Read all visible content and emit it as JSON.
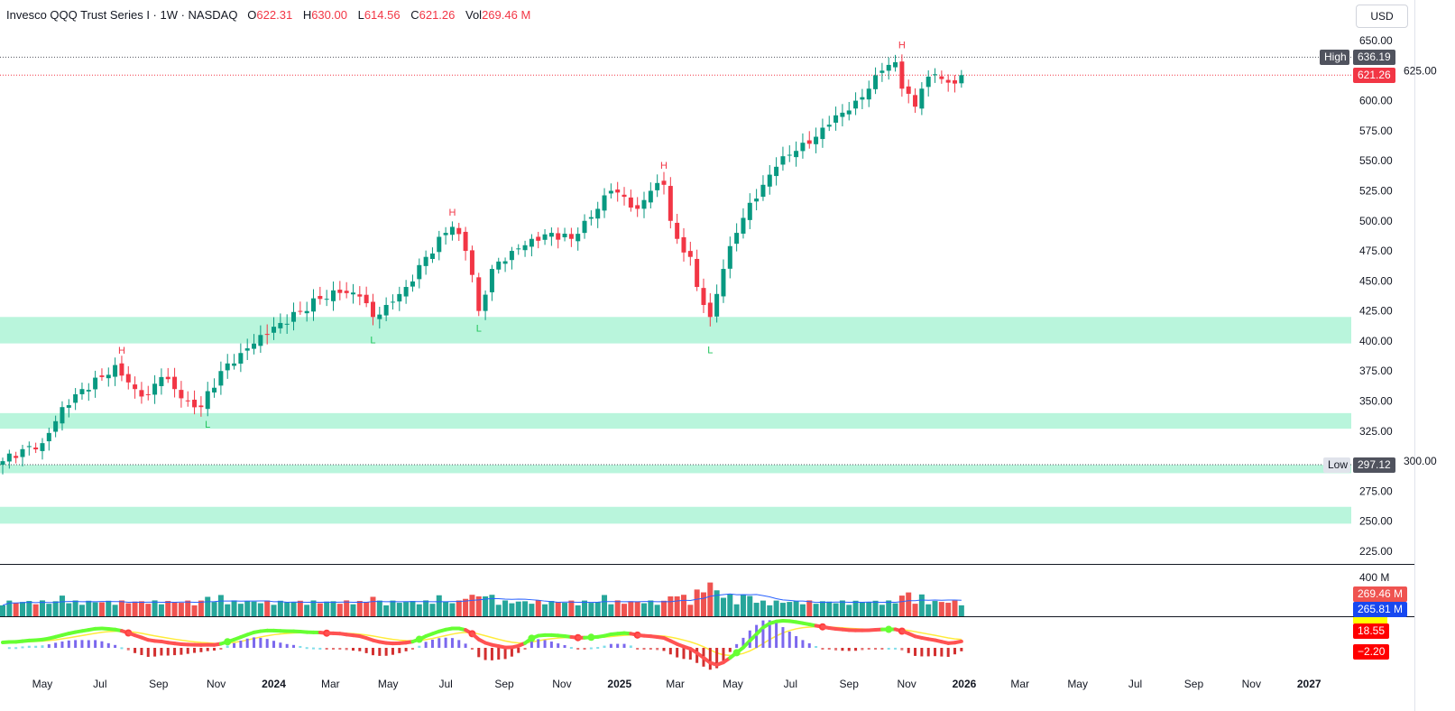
{
  "legend": {
    "title": "Invesco QQQ Trust Series I · 1W · NASDAQ",
    "open_label": "O",
    "open": "622.31",
    "high_label": "H",
    "high": "630.00",
    "low_label": "L",
    "low": "614.56",
    "close_label": "C",
    "close": "621.26",
    "vol_label": "Vol",
    "vol": "269.46 M"
  },
  "currency": "USD",
  "colors": {
    "up": "#089981",
    "down": "#f23645",
    "zone": "#b9f5dc",
    "ma": "#2962ff"
  },
  "price_tags": {
    "high_label": "High",
    "high_value": "636.19",
    "last_value": "621.26",
    "low_label": "Low",
    "low_value": "297.12"
  },
  "volume_tags": {
    "axis": "400 M",
    "volume": "269.46 M",
    "volume_ma": "265.81 M"
  },
  "indicator_tags": {
    "line": "18.55",
    "histogram": "−2.20"
  },
  "chart_data": {
    "type": "candlestick",
    "timeframe": "1W",
    "y_ticks": [
      "650.00",
      "625.00",
      "600.00",
      "575.00",
      "550.00",
      "525.00",
      "500.00",
      "475.00",
      "450.00",
      "425.00",
      "400.00",
      "375.00",
      "350.00",
      "325.00",
      "300.00",
      "275.00",
      "250.00",
      "225.00"
    ],
    "ylim": [
      225,
      650
    ],
    "x_ticks": [
      {
        "label": "May",
        "date": "2023-05-01"
      },
      {
        "label": "Jul",
        "date": "2023-07-01"
      },
      {
        "label": "Sep",
        "date": "2023-09-01"
      },
      {
        "label": "Nov",
        "date": "2023-11-01"
      },
      {
        "label": "2024",
        "date": "2024-01-01",
        "bold": true
      },
      {
        "label": "Mar",
        "date": "2024-03-01"
      },
      {
        "label": "May",
        "date": "2024-05-01"
      },
      {
        "label": "Jul",
        "date": "2024-07-01"
      },
      {
        "label": "Sep",
        "date": "2024-09-01"
      },
      {
        "label": "Nov",
        "date": "2024-11-01"
      },
      {
        "label": "2025",
        "date": "2025-01-01",
        "bold": true
      },
      {
        "label": "Mar",
        "date": "2025-03-01"
      },
      {
        "label": "May",
        "date": "2025-05-01"
      },
      {
        "label": "Jul",
        "date": "2025-07-01"
      },
      {
        "label": "Sep",
        "date": "2025-09-01"
      },
      {
        "label": "Nov",
        "date": "2025-11-01"
      },
      {
        "label": "2026",
        "date": "2026-01-01",
        "bold": true
      },
      {
        "label": "Mar",
        "date": "2026-03-01"
      },
      {
        "label": "May",
        "date": "2026-05-01"
      },
      {
        "label": "Jul",
        "date": "2026-07-01"
      },
      {
        "label": "Sep",
        "date": "2026-09-01"
      },
      {
        "label": "Nov",
        "date": "2026-11-01"
      },
      {
        "label": "2027",
        "date": "2027-01-01",
        "bold": true
      }
    ],
    "close_keypoints": [
      [
        "2023-03-20",
        300
      ],
      [
        "2023-04-10",
        310
      ],
      [
        "2023-05-01",
        315
      ],
      [
        "2023-05-22",
        345
      ],
      [
        "2023-06-12",
        360
      ],
      [
        "2023-07-03",
        370
      ],
      [
        "2023-07-17",
        380
      ],
      [
        "2023-08-07",
        360
      ],
      [
        "2023-08-21",
        355
      ],
      [
        "2023-09-04",
        370
      ],
      [
        "2023-09-18",
        360
      ],
      [
        "2023-10-02",
        350
      ],
      [
        "2023-10-16",
        345
      ],
      [
        "2023-11-06",
        375
      ],
      [
        "2023-11-27",
        390
      ],
      [
        "2023-12-18",
        405
      ],
      [
        "2024-01-08",
        415
      ],
      [
        "2024-01-29",
        425
      ],
      [
        "2024-02-19",
        435
      ],
      [
        "2024-03-11",
        440
      ],
      [
        "2024-04-01",
        437
      ],
      [
        "2024-04-15",
        420
      ],
      [
        "2024-04-29",
        430
      ],
      [
        "2024-05-20",
        445
      ],
      [
        "2024-06-10",
        470
      ],
      [
        "2024-07-01",
        490
      ],
      [
        "2024-07-08",
        495
      ],
      [
        "2024-07-22",
        475
      ],
      [
        "2024-07-29",
        455
      ],
      [
        "2024-08-05",
        425
      ],
      [
        "2024-08-19",
        460
      ],
      [
        "2024-09-09",
        475
      ],
      [
        "2024-09-30",
        485
      ],
      [
        "2024-10-21",
        490
      ],
      [
        "2024-11-11",
        485
      ],
      [
        "2024-11-25",
        500
      ],
      [
        "2024-12-09",
        510
      ],
      [
        "2024-12-23",
        525
      ],
      [
        "2025-01-06",
        520
      ],
      [
        "2025-01-20",
        510
      ],
      [
        "2025-02-03",
        525
      ],
      [
        "2025-02-17",
        530
      ],
      [
        "2025-02-24",
        500
      ],
      [
        "2025-03-03",
        485
      ],
      [
        "2025-03-17",
        470
      ],
      [
        "2025-03-24",
        445
      ],
      [
        "2025-03-31",
        430
      ],
      [
        "2025-04-07",
        420
      ],
      [
        "2025-04-21",
        460
      ],
      [
        "2025-05-05",
        490
      ],
      [
        "2025-05-19",
        515
      ],
      [
        "2025-06-02",
        530
      ],
      [
        "2025-06-16",
        545
      ],
      [
        "2025-06-30",
        555
      ],
      [
        "2025-07-14",
        565
      ],
      [
        "2025-07-28",
        570
      ],
      [
        "2025-08-11",
        580
      ],
      [
        "2025-08-25",
        590
      ],
      [
        "2025-09-08",
        600
      ],
      [
        "2025-09-22",
        610
      ],
      [
        "2025-10-06",
        625
      ],
      [
        "2025-10-20",
        632
      ],
      [
        "2025-10-27",
        610
      ],
      [
        "2025-11-10",
        595
      ],
      [
        "2025-11-17",
        610
      ],
      [
        "2025-12-01",
        622
      ],
      [
        "2025-12-15",
        615
      ],
      [
        "2025-12-29",
        621.26
      ]
    ],
    "zones": [
      [
        398,
        420
      ],
      [
        327,
        340
      ],
      [
        290,
        297
      ],
      [
        248,
        262
      ]
    ],
    "pivots": [
      {
        "label": "H",
        "date": "2023-07-24",
        "price": 382,
        "type": "high"
      },
      {
        "label": "L",
        "date": "2023-10-23",
        "price": 340,
        "type": "low"
      },
      {
        "label": "L",
        "date": "2024-04-15",
        "price": 410,
        "type": "low"
      },
      {
        "label": "H",
        "date": "2024-07-08",
        "price": 497,
        "type": "high"
      },
      {
        "label": "L",
        "date": "2024-08-05",
        "price": 420,
        "type": "low"
      },
      {
        "label": "H",
        "date": "2025-02-17",
        "price": 536,
        "type": "high"
      },
      {
        "label": "L",
        "date": "2025-04-07",
        "price": 402,
        "type": "low"
      },
      {
        "label": "H",
        "date": "2025-10-27",
        "price": 636,
        "type": "high"
      }
    ],
    "high_price": 636.19,
    "last_price": 621.26,
    "low_price": 297.12
  }
}
